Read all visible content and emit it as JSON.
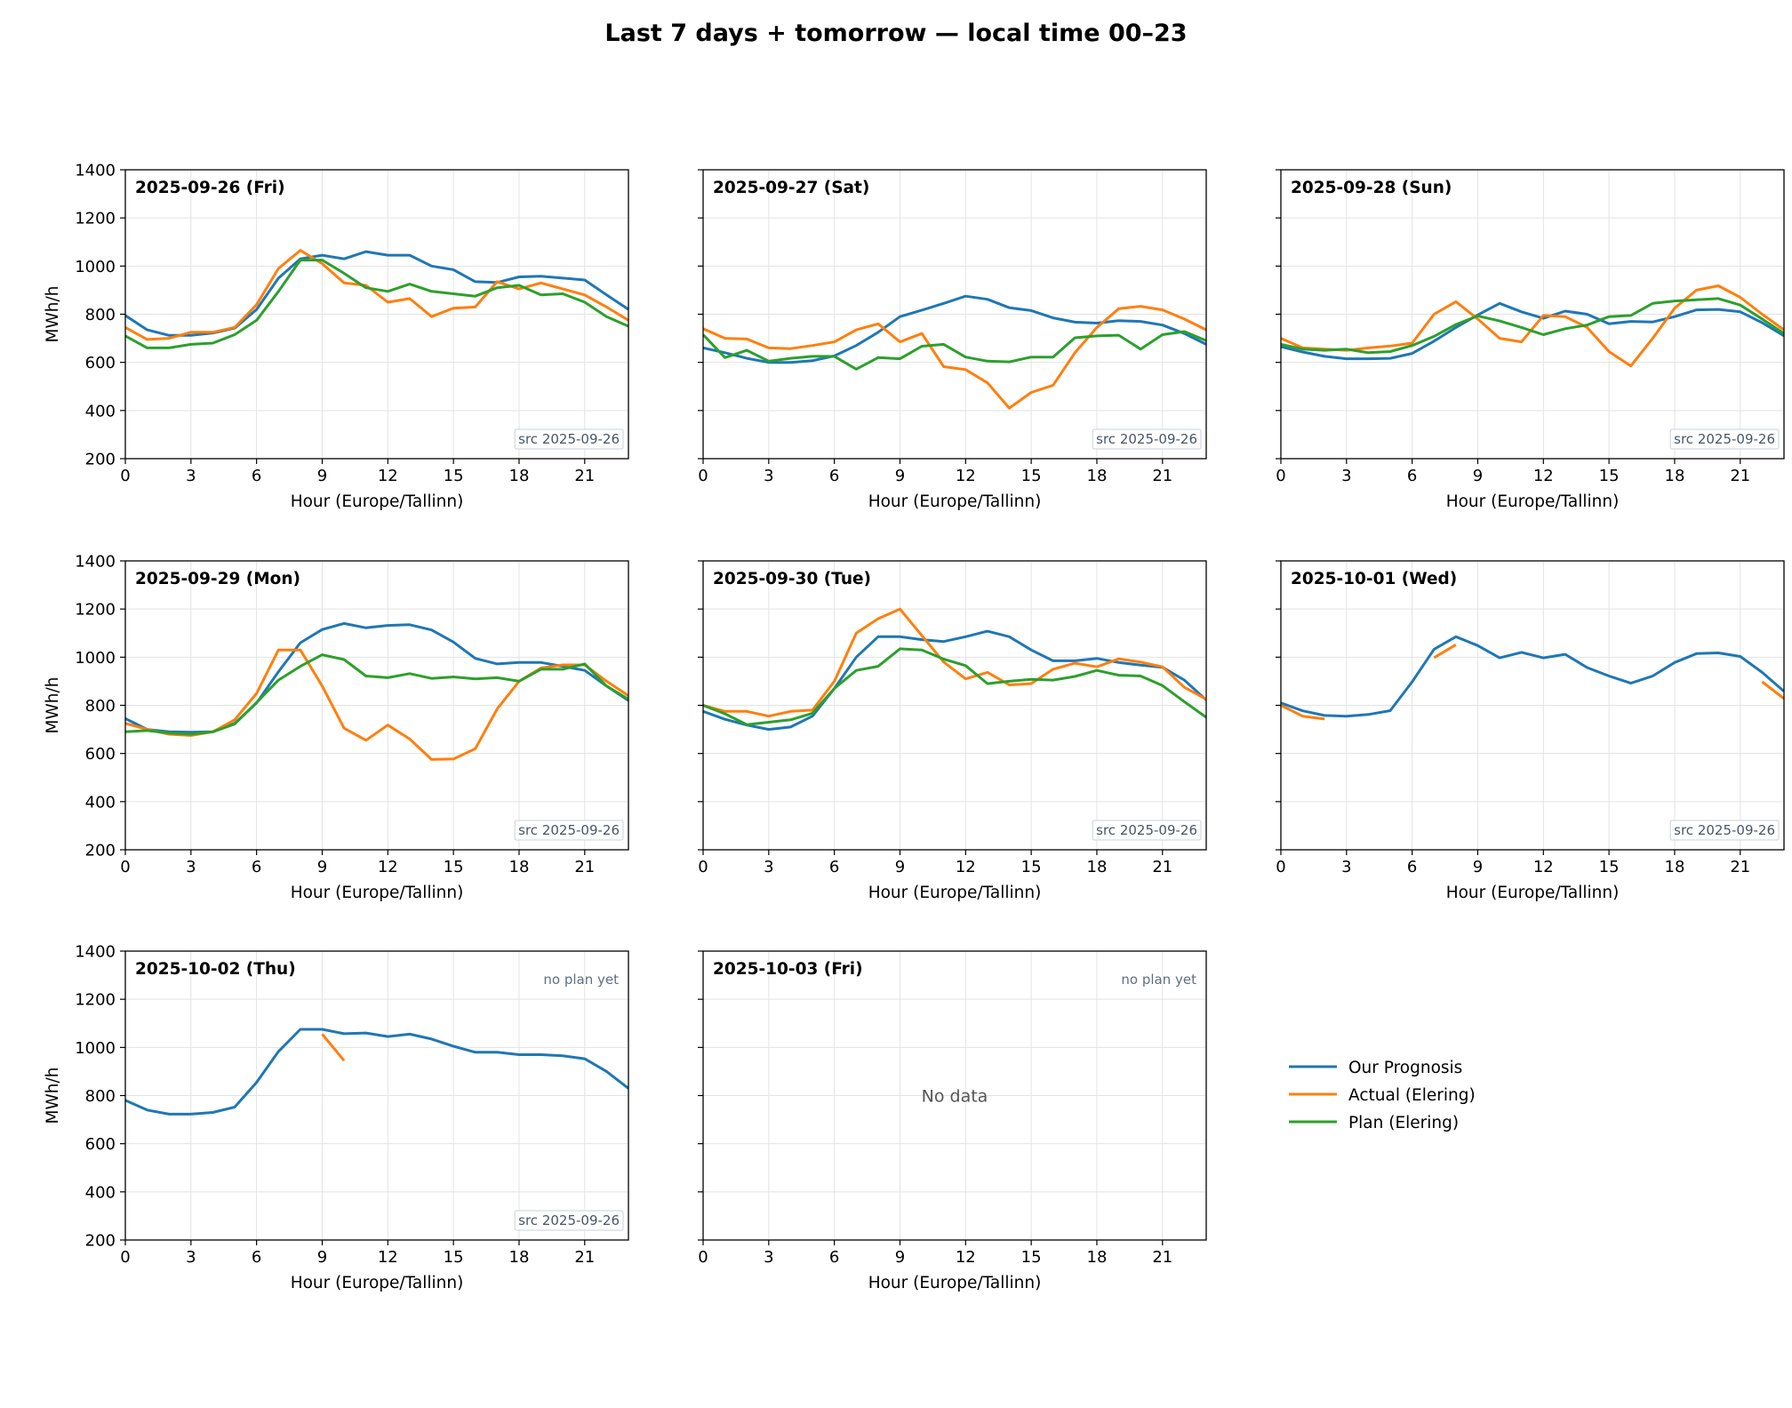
{
  "title": "Last 7 days + tomorrow — local time 00–23",
  "chart_data": {
    "type": "line",
    "layout": "small multiples, 3 columns, shared y axis",
    "xlabel": "Hour (Europe/Tallinn)",
    "ylabel": "MWh/h",
    "xlim": [
      0,
      23
    ],
    "ylim": [
      200,
      1400
    ],
    "xticks": [
      0,
      3,
      6,
      9,
      12,
      15,
      18,
      21
    ],
    "yticks": [
      200,
      400,
      600,
      800,
      1000,
      1200,
      1400
    ],
    "grid": true,
    "legend_position": "right of bottom row",
    "series_styles": [
      {
        "key": "prognosis",
        "name": "Our Prognosis",
        "color": "#1f77b4"
      },
      {
        "key": "actual",
        "name": "Actual (Elering)",
        "color": "#ff7f0e"
      },
      {
        "key": "plan",
        "name": "Plan (Elering)",
        "color": "#2ca02c"
      }
    ],
    "panels": [
      {
        "title": "2025-09-26 (Fri)",
        "note": "",
        "src": "src 2025-09-26",
        "series": {
          "prognosis": [
            795,
            735,
            712,
            712,
            722,
            742,
            820,
            950,
            1030,
            1045,
            1030,
            1060,
            1045,
            1045,
            1000,
            985,
            935,
            932,
            955,
            958,
            950,
            942,
            880,
            820
          ],
          "actual": [
            745,
            695,
            700,
            725,
            725,
            745,
            840,
            990,
            1065,
            1010,
            930,
            920,
            850,
            865,
            790,
            825,
            830,
            935,
            905,
            930,
            905,
            880,
            830,
            775
          ],
          "plan": [
            710,
            660,
            660,
            675,
            680,
            715,
            775,
            895,
            1025,
            1025,
            970,
            910,
            895,
            925,
            895,
            885,
            875,
            910,
            920,
            880,
            885,
            850,
            790,
            750
          ]
        }
      },
      {
        "title": "2025-09-27 (Sat)",
        "note": "",
        "src": "src 2025-09-26",
        "series": {
          "prognosis": [
            660,
            640,
            617,
            600,
            600,
            607,
            627,
            670,
            725,
            790,
            817,
            845,
            875,
            862,
            827,
            815,
            785,
            767,
            763,
            773,
            770,
            755,
            720,
            675
          ],
          "actual": [
            740,
            700,
            697,
            660,
            657,
            670,
            685,
            735,
            760,
            685,
            720,
            582,
            570,
            515,
            410,
            475,
            505,
            640,
            745,
            823,
            833,
            818,
            780,
            735
          ],
          "plan": [
            715,
            620,
            650,
            605,
            617,
            625,
            625,
            572,
            620,
            615,
            667,
            675,
            622,
            605,
            602,
            622,
            622,
            702,
            710,
            713,
            655,
            715,
            728,
            690
          ]
        }
      },
      {
        "title": "2025-09-28 (Sun)",
        "note": "",
        "src": "src 2025-09-26",
        "series": {
          "prognosis": [
            665,
            643,
            625,
            615,
            615,
            617,
            637,
            688,
            745,
            797,
            845,
            810,
            783,
            813,
            800,
            760,
            770,
            768,
            790,
            818,
            820,
            810,
            765,
            710
          ],
          "actual": [
            700,
            660,
            655,
            650,
            660,
            668,
            680,
            800,
            852,
            780,
            700,
            685,
            795,
            790,
            745,
            645,
            585,
            700,
            825,
            900,
            918,
            870,
            800,
            735
          ],
          "plan": [
            675,
            655,
            650,
            655,
            640,
            645,
            670,
            708,
            757,
            793,
            772,
            745,
            715,
            740,
            755,
            790,
            795,
            845,
            855,
            860,
            865,
            838,
            780,
            720
          ]
        }
      },
      {
        "title": "2025-09-29 (Mon)",
        "note": "",
        "src": "src 2025-09-26",
        "series": {
          "prognosis": [
            745,
            700,
            690,
            688,
            690,
            725,
            810,
            940,
            1060,
            1115,
            1140,
            1122,
            1132,
            1135,
            1113,
            1063,
            995,
            972,
            978,
            978,
            962,
            945,
            880,
            820
          ],
          "actual": [
            725,
            700,
            680,
            675,
            690,
            740,
            850,
            1030,
            1030,
            880,
            705,
            655,
            718,
            660,
            575,
            577,
            620,
            785,
            900,
            955,
            968,
            968,
            900,
            840
          ],
          "plan": [
            690,
            695,
            685,
            680,
            690,
            722,
            812,
            905,
            962,
            1010,
            990,
            922,
            915,
            932,
            912,
            918,
            910,
            915,
            900,
            950,
            950,
            972,
            880,
            825
          ]
        }
      },
      {
        "title": "2025-09-30 (Tue)",
        "note": "",
        "src": "src 2025-09-26",
        "series": {
          "prognosis": [
            775,
            742,
            718,
            700,
            710,
            755,
            870,
            1000,
            1085,
            1085,
            1073,
            1065,
            1085,
            1108,
            1085,
            1030,
            985,
            985,
            995,
            978,
            967,
            958,
            905,
            822
          ],
          "actual": [
            800,
            775,
            775,
            755,
            775,
            780,
            900,
            1100,
            1160,
            1200,
            1090,
            980,
            910,
            937,
            885,
            890,
            950,
            975,
            960,
            993,
            980,
            960,
            875,
            825
          ],
          "plan": [
            800,
            765,
            720,
            730,
            740,
            767,
            870,
            945,
            962,
            1035,
            1030,
            992,
            965,
            890,
            900,
            908,
            905,
            920,
            945,
            925,
            922,
            882,
            815,
            750
          ]
        }
      },
      {
        "title": "2025-10-01 (Wed)",
        "note": "",
        "src": "src 2025-09-26",
        "series": {
          "prognosis": [
            810,
            777,
            758,
            755,
            762,
            778,
            898,
            1033,
            1085,
            1048,
            997,
            1020,
            997,
            1012,
            957,
            922,
            892,
            922,
            978,
            1015,
            1018,
            1003,
            937,
            858
          ],
          "actual": [
            800,
            755,
            743,
            null,
            null,
            null,
            null,
            998,
            1052,
            null,
            null,
            null,
            null,
            null,
            null,
            null,
            null,
            null,
            null,
            null,
            null,
            null,
            898,
            828
          ],
          "plan": [
            null,
            null,
            null,
            null,
            null,
            null,
            null,
            null,
            null,
            null,
            null,
            null,
            null,
            null,
            null,
            null,
            null,
            null,
            null,
            null,
            null,
            null,
            null,
            null
          ]
        }
      },
      {
        "title": "2025-10-02 (Thu)",
        "note": "no plan yet",
        "src": "src 2025-09-26",
        "series": {
          "prognosis": [
            780,
            740,
            723,
            723,
            730,
            752,
            855,
            983,
            1075,
            1075,
            1057,
            1060,
            1045,
            1055,
            1035,
            1005,
            980,
            980,
            970,
            970,
            965,
            953,
            900,
            830
          ],
          "actual": [
            null,
            null,
            null,
            null,
            null,
            null,
            null,
            null,
            null,
            1055,
            945,
            null,
            null,
            null,
            null,
            null,
            null,
            null,
            null,
            null,
            null,
            null,
            null,
            null
          ],
          "plan": [
            null,
            null,
            null,
            null,
            null,
            null,
            null,
            null,
            null,
            null,
            null,
            null,
            null,
            null,
            null,
            null,
            null,
            null,
            null,
            null,
            null,
            null,
            null,
            null
          ]
        }
      },
      {
        "title": "2025-10-03 (Fri)",
        "note": "no plan yet",
        "src": "",
        "empty_text": "No data",
        "series": {
          "prognosis": [],
          "actual": [],
          "plan": []
        }
      }
    ]
  }
}
